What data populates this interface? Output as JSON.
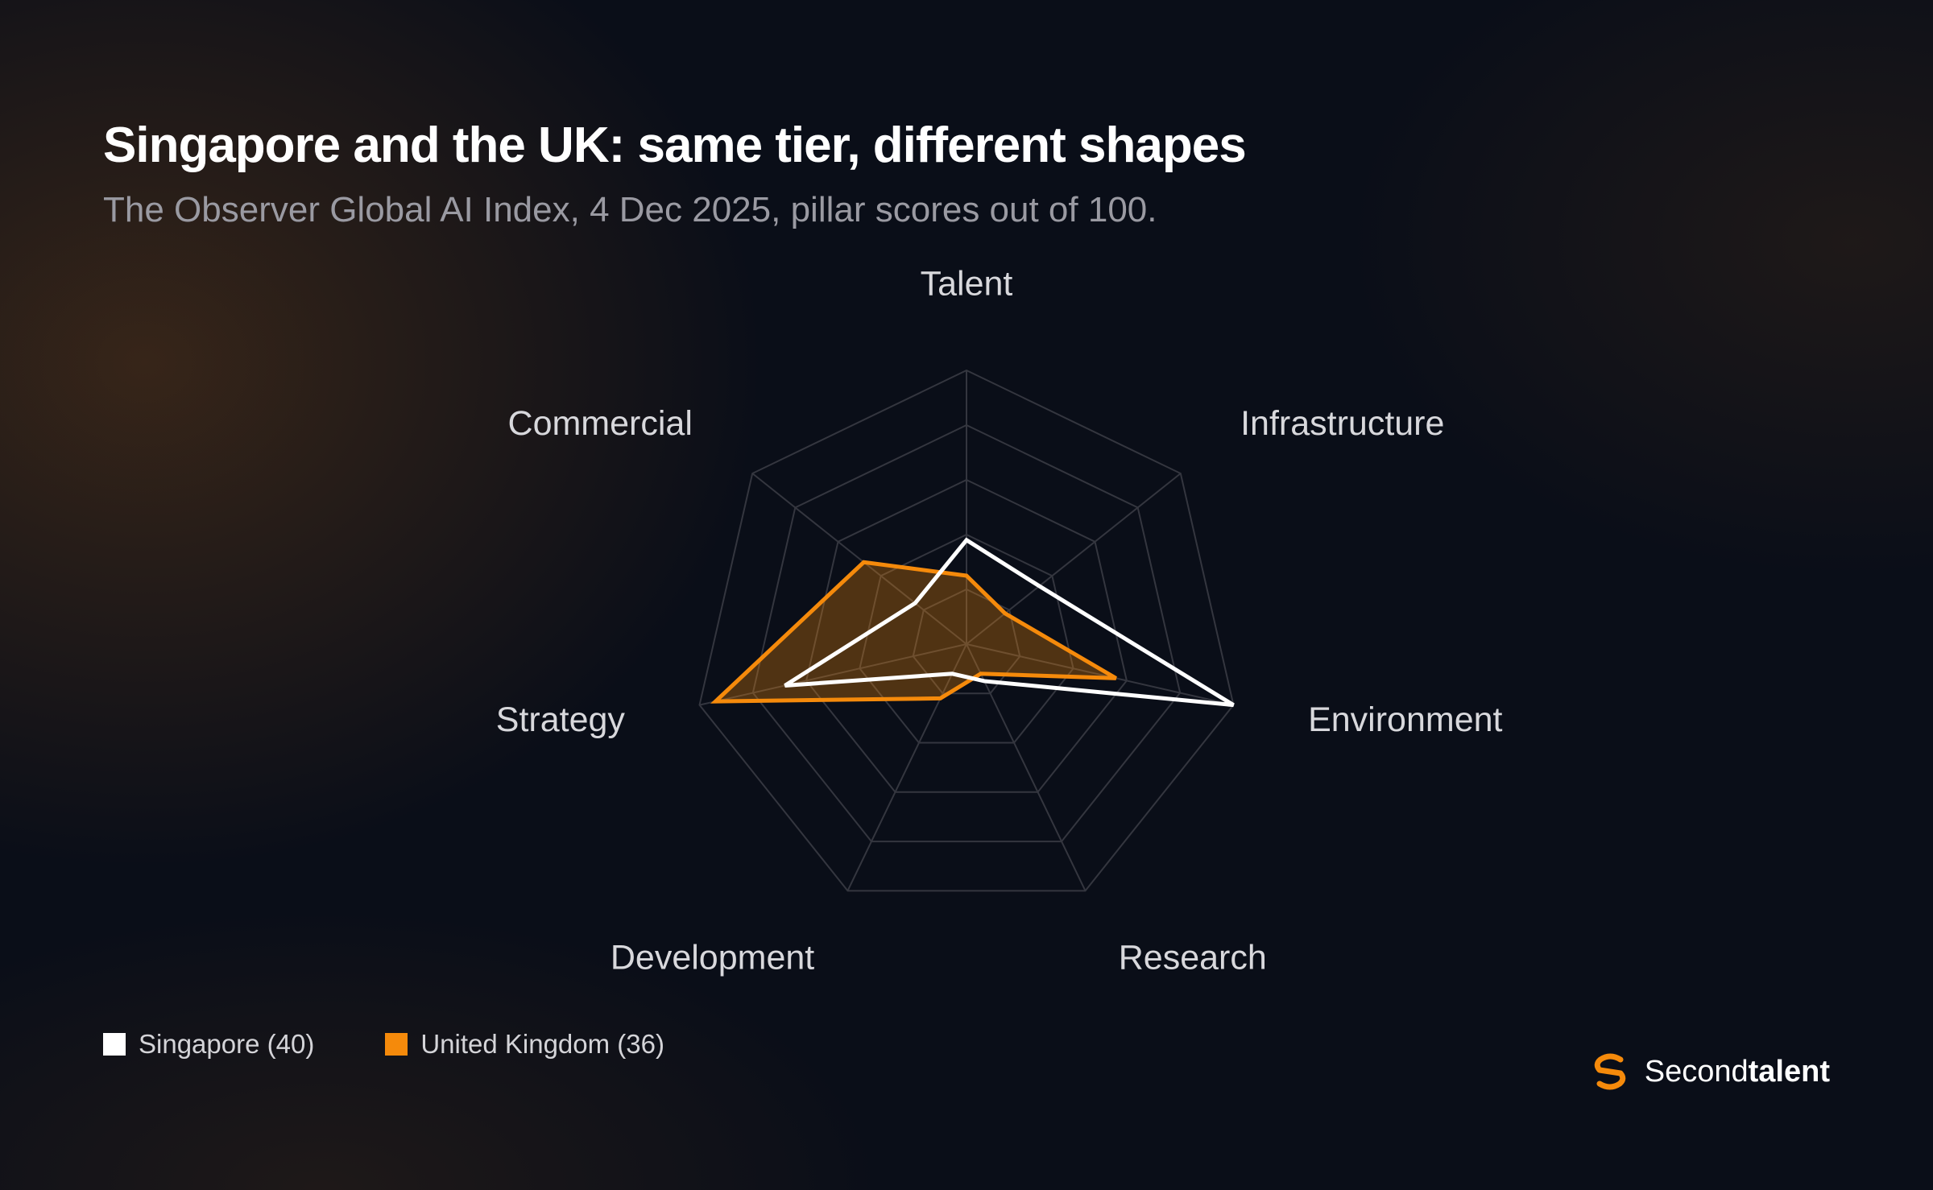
{
  "header": {
    "title": "Singapore and the UK: same tier, different shapes",
    "subtitle": "The Observer Global AI Index, 4 Dec 2025, pillar scores out of 100."
  },
  "chart_data": {
    "type": "radar",
    "categories": [
      "Talent",
      "Infrastructure",
      "Environment",
      "Research",
      "Development",
      "Strategy",
      "Commercial"
    ],
    "rlim": [
      0,
      100
    ],
    "grid_levels": [
      20,
      40,
      60,
      80,
      100
    ],
    "series": [
      {
        "name": "Singapore (40)",
        "color": "#ffffff",
        "values": [
          38,
          34,
          100,
          15,
          12,
          68,
          24
        ],
        "fill": false
      },
      {
        "name": "United Kingdom (36)",
        "color": "#f58a0b",
        "values": [
          25,
          18,
          56,
          12,
          22,
          94,
          48
        ],
        "fill": true
      }
    ]
  },
  "legend": [
    {
      "label": "Singapore (40)",
      "color": "#ffffff"
    },
    {
      "label": "United Kingdom (36)",
      "color": "#f58a0b"
    }
  ],
  "brand": {
    "first": "Second",
    "second": "talent",
    "icon": "secondtalent-logo-icon",
    "accent": "#f58a0b"
  }
}
